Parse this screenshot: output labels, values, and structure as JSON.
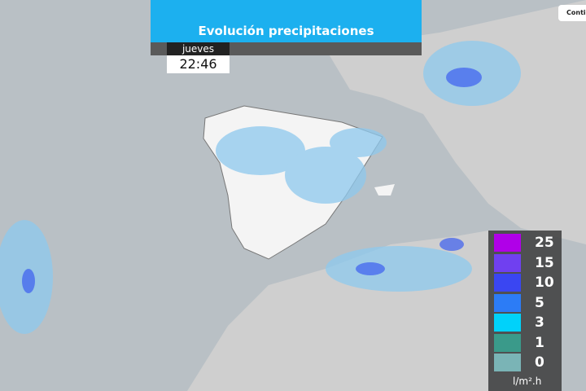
{
  "header": {
    "title": "Evolución precipitaciones",
    "day": "jueves",
    "time": "22:46"
  },
  "button": "Contin",
  "legend": {
    "unit": "l/m².h",
    "items": [
      {
        "label": "25",
        "color": "#b000e8"
      },
      {
        "label": "15",
        "color": "#7040f0"
      },
      {
        "label": "10",
        "color": "#3a46f2"
      },
      {
        "label": "5",
        "color": "#2c7cf6"
      },
      {
        "label": "3",
        "color": "#00d2fa"
      },
      {
        "label": "1",
        "color": "#3a9a8a"
      },
      {
        "label": "0",
        "color": "#7ab4b6"
      }
    ]
  }
}
